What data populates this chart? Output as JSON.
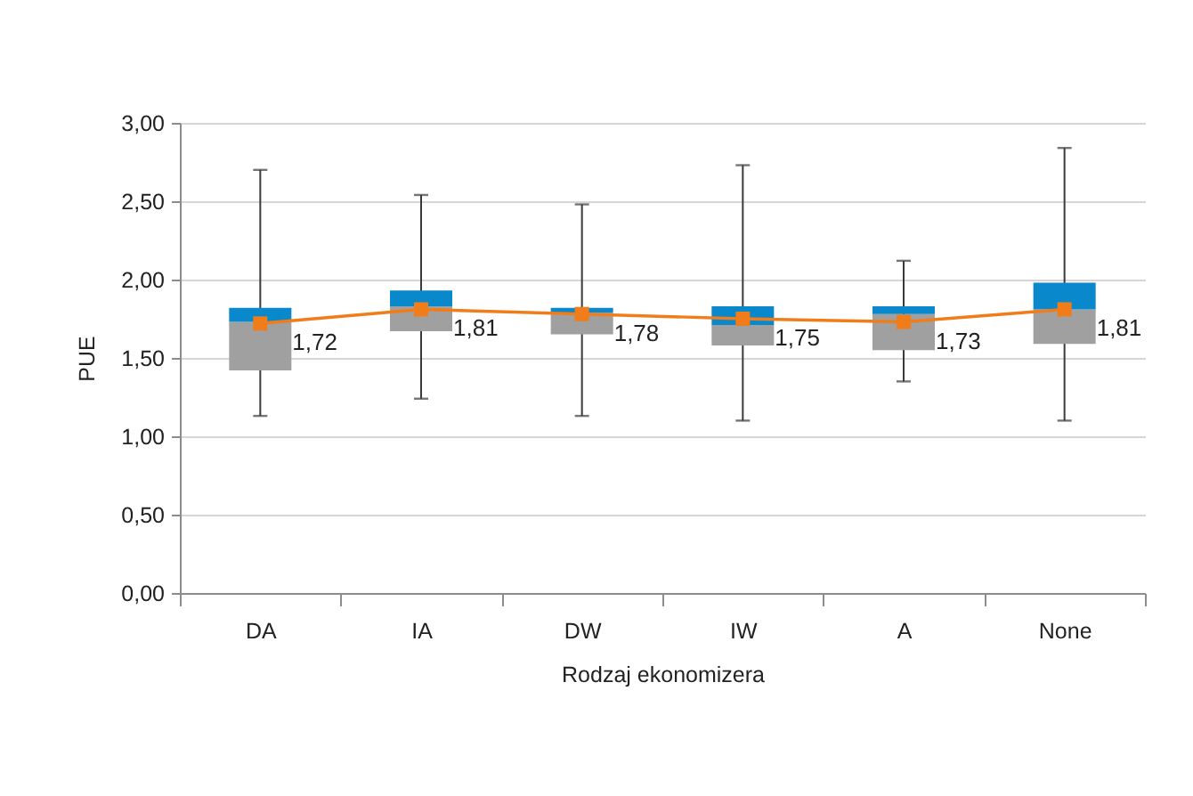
{
  "chart_data": {
    "type": "box",
    "xlabel": "Rodzaj ekonomizera",
    "ylabel": "PUE",
    "categories": [
      "DA",
      "IA",
      "DW",
      "IW",
      "A",
      "None"
    ],
    "ylim": [
      0,
      3
    ],
    "yticks": [
      {
        "value": 0,
        "label": "0,00"
      },
      {
        "value": 0.5,
        "label": "0,50"
      },
      {
        "value": 1,
        "label": "1,00"
      },
      {
        "value": 1.5,
        "label": "1,50"
      },
      {
        "value": 2,
        "label": "2,00"
      },
      {
        "value": 2.5,
        "label": "2,50"
      },
      {
        "value": 3,
        "label": "3,00"
      }
    ],
    "grid": "y",
    "series": [
      {
        "color": "#a0a0a0",
        "boxes": [
          {
            "low": 1.13,
            "q1": 1.42,
            "median": 1.73,
            "q3": 1.82,
            "high": 2.7
          },
          {
            "low": 1.24,
            "q1": 1.67,
            "median": 1.83,
            "q3": 1.93,
            "high": 2.54
          },
          {
            "low": 1.13,
            "q1": 1.65,
            "median": 1.79,
            "q3": 1.82,
            "high": 2.48
          },
          {
            "low": 1.1,
            "q1": 1.58,
            "median": 1.71,
            "q3": 1.83,
            "high": 2.73
          },
          {
            "low": 1.35,
            "q1": 1.55,
            "median": 1.78,
            "q3": 1.83,
            "high": 2.12
          },
          {
            "low": 1.1,
            "q1": 1.59,
            "median": 1.81,
            "q3": 1.98,
            "high": 2.84
          }
        ]
      },
      {
        "type": "line",
        "color": "#f07d1a",
        "marker": "square",
        "values": [
          1.72,
          1.81,
          1.78,
          1.75,
          1.73,
          1.81
        ],
        "value_labels": [
          "1,72",
          "1,81",
          "1,78",
          "1,75",
          "1,73",
          "1,81"
        ]
      }
    ]
  }
}
